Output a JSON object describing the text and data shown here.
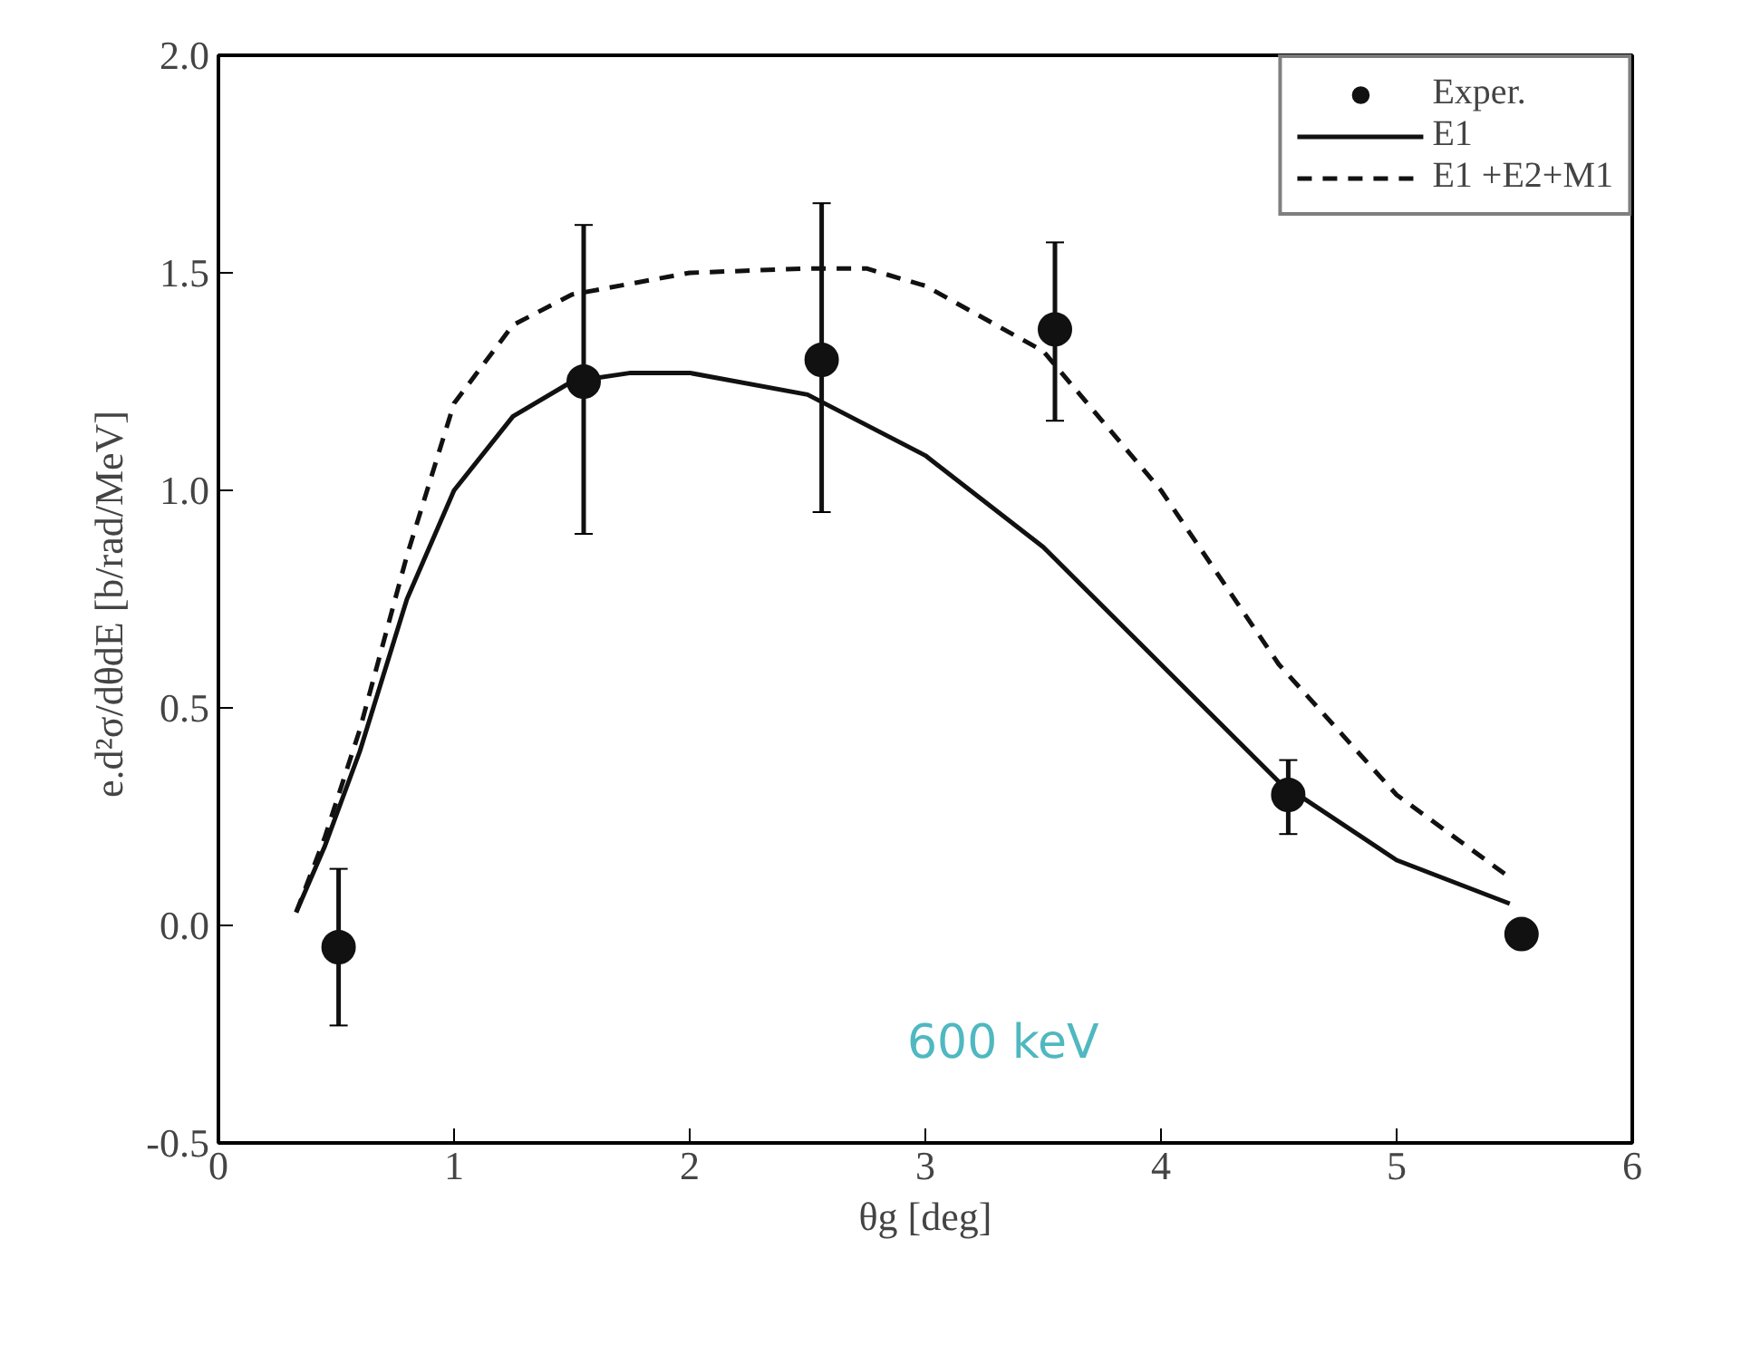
{
  "chart_data": {
    "type": "scatter",
    "xlabel": "θg [deg]",
    "ylabel": "e.d²σ/dθdE  [b/rad/MeV]",
    "xlim": [
      0,
      6
    ],
    "ylim": [
      -0.5,
      2.0
    ],
    "xticks": [
      0,
      1,
      2,
      3,
      4,
      5,
      6
    ],
    "yticks": [
      {
        "value": -0.5,
        "label": "-0.5"
      },
      {
        "value": 0,
        "label": "0.0"
      },
      {
        "value": 0.5,
        "label": "0.5"
      },
      {
        "value": 1,
        "label": "1.0"
      },
      {
        "value": 1.5,
        "label": "1.5"
      },
      {
        "value": 2,
        "label": "2.0"
      }
    ],
    "grid": false,
    "legend": "top right",
    "annotations": [
      "600 keV"
    ],
    "series": [
      {
        "name": "Exper.",
        "marker": "circle",
        "color": "#111111",
        "x": [
          0.51,
          1.55,
          2.56,
          3.55,
          4.54,
          5.53
        ],
        "values": [
          -0.05,
          1.25,
          1.3,
          1.37,
          0.3,
          -0.02
        ],
        "errors": [
          [
            -0.23,
            0.13
          ],
          [
            0.9,
            1.61
          ],
          [
            0.95,
            1.66
          ],
          [
            1.16,
            1.57
          ],
          [
            0.21,
            0.38
          ],
          null
        ]
      },
      {
        "name": "E1",
        "type": "line",
        "line_style": "solid",
        "color": "#111111",
        "x": [
          0.33,
          0.45,
          0.6,
          0.8,
          1.0,
          1.25,
          1.5,
          1.75,
          2.0,
          2.5,
          3.0,
          3.5,
          4.0,
          4.5,
          5.0,
          5.48
        ],
        "values": [
          0.03,
          0.18,
          0.4,
          0.75,
          1.0,
          1.17,
          1.25,
          1.27,
          1.27,
          1.22,
          1.08,
          0.87,
          0.6,
          0.33,
          0.15,
          0.05
        ]
      },
      {
        "name": "E1 +E2+M1",
        "type": "line",
        "line_style": "dashed",
        "color": "#111111",
        "x": [
          0.33,
          0.45,
          0.6,
          0.8,
          1.0,
          1.25,
          1.5,
          2.0,
          2.5,
          2.75,
          3.0,
          3.5,
          4.0,
          4.5,
          5.0,
          5.48
        ],
        "values": [
          0.03,
          0.2,
          0.45,
          0.85,
          1.2,
          1.38,
          1.45,
          1.5,
          1.51,
          1.51,
          1.47,
          1.32,
          1.0,
          0.6,
          0.3,
          0.11
        ]
      }
    ]
  }
}
